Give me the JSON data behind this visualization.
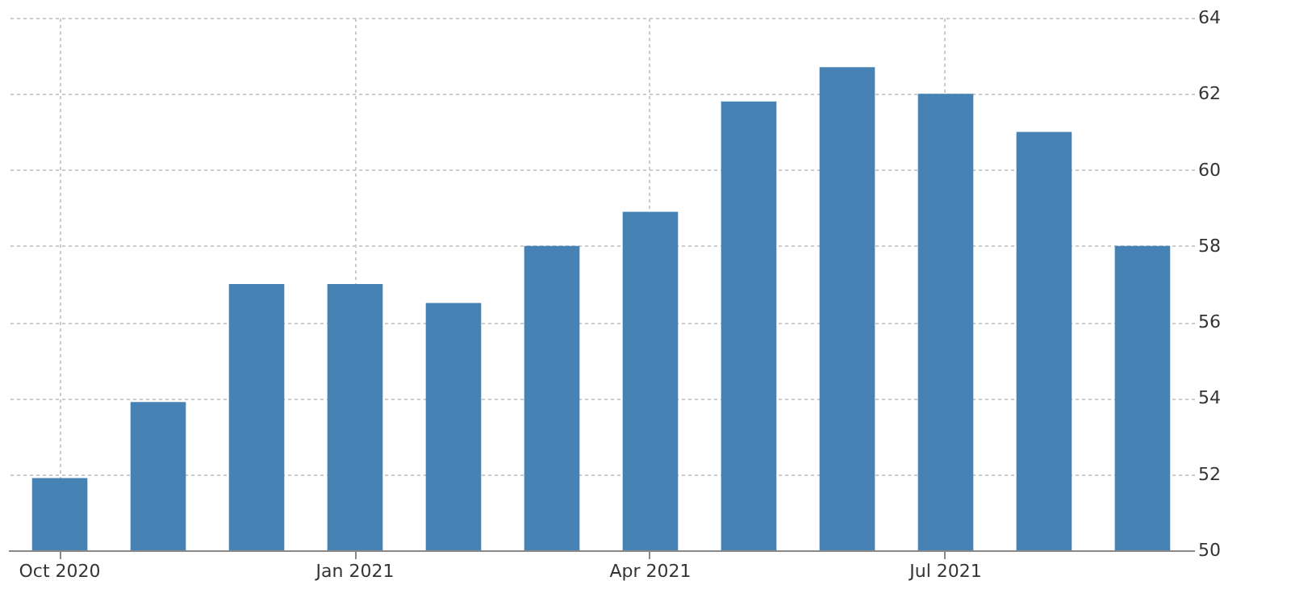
{
  "chart_data": {
    "type": "bar",
    "categories": [
      "Oct 2020",
      null,
      null,
      "Jan 2021",
      null,
      null,
      "Apr 2021",
      null,
      null,
      "Jul 2021",
      null,
      null
    ],
    "values": [
      51.9,
      53.9,
      57,
      57,
      56.5,
      58,
      58.9,
      61.8,
      62.7,
      62,
      61,
      58
    ],
    "color": "#4682b4",
    "ylim": [
      50,
      64
    ],
    "yticks": [
      50,
      52,
      54,
      56,
      58,
      60,
      62,
      64
    ],
    "grid": true
  }
}
